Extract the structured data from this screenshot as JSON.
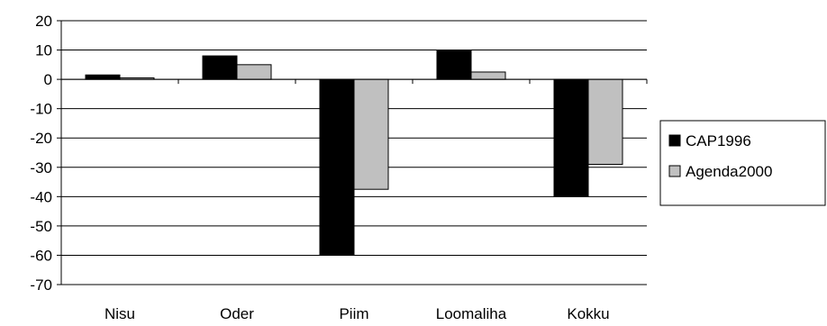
{
  "chart_data": {
    "type": "bar",
    "categories": [
      "Nisu",
      "Oder",
      "Piim",
      "Loomaliha",
      "Kokku"
    ],
    "series": [
      {
        "name": "CAP1996",
        "values": [
          1.5,
          8,
          -60,
          10,
          -40
        ],
        "color": "#000000"
      },
      {
        "name": "Agenda2000",
        "values": [
          0.5,
          5,
          -37.5,
          2.5,
          -29
        ],
        "color": "#c0c0c0"
      }
    ],
    "ylim": [
      -70,
      20
    ],
    "yticks": [
      20,
      10,
      0,
      -10,
      -20,
      -30,
      -40,
      -50,
      -60,
      -70
    ],
    "grid": true,
    "legend": "right",
    "title": "",
    "xlabel": "",
    "ylabel": ""
  }
}
